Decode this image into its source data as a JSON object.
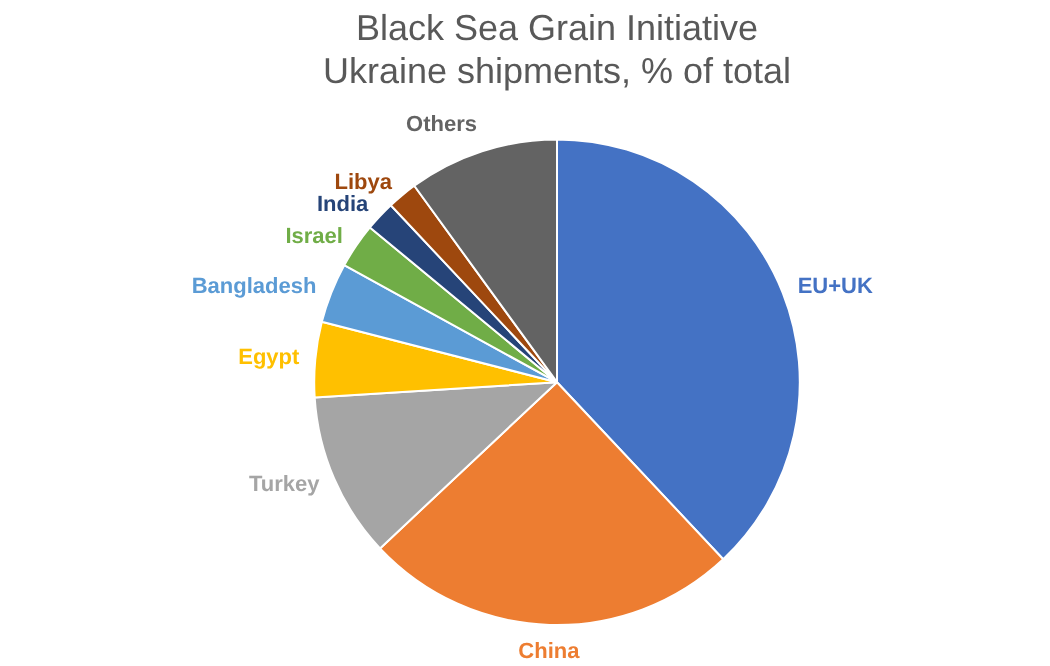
{
  "chart_data": {
    "type": "pie",
    "title": "Black Sea Grain Initiative\nUkraine shipments, % of total",
    "categories": [
      "EU+UK",
      "China",
      "Turkey",
      "Egypt",
      "Bangladesh",
      "Israel",
      "India",
      "Libya",
      "Others"
    ],
    "values": [
      38,
      25,
      11,
      5,
      4,
      3,
      2,
      2,
      10
    ],
    "colors": [
      "#4472c4",
      "#ed7d31",
      "#a5a5a5",
      "#ffc000",
      "#5b9bd5",
      "#70ad47",
      "#264478",
      "#9e480e",
      "#636363"
    ],
    "legend": false
  }
}
